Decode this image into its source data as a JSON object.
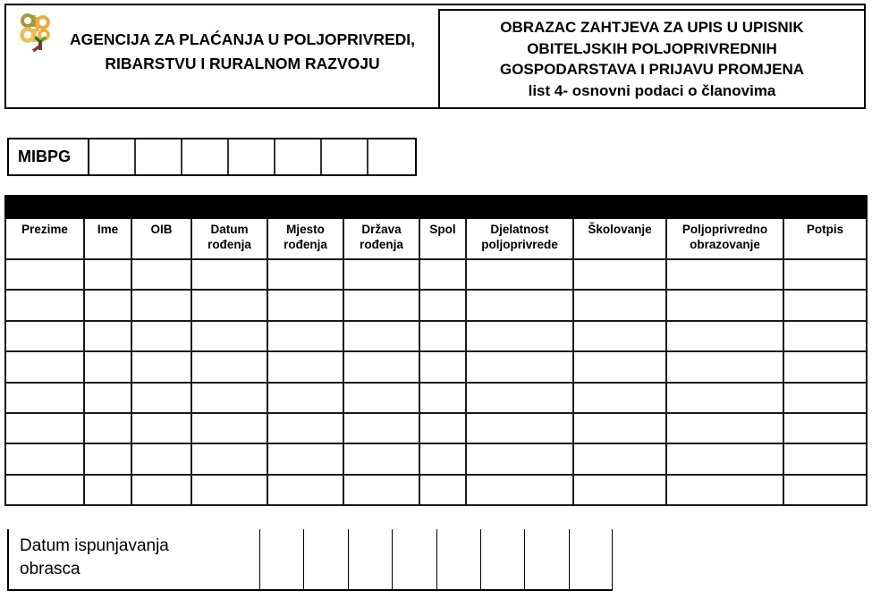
{
  "header": {
    "logo_icon": "apprrr-flower-logo",
    "logo_colors": {
      "olive": "#A09A3E",
      "gold": "#ECAE3B",
      "light_gold": "#F0BC55",
      "green": "#57A33B",
      "dark_green": "#2C6E2F",
      "brown": "#6F4323",
      "maroon": "#7A3B2E"
    },
    "agency_lines": [
      "AGENCIJA ZA PLAĆANJA U POLJOPRIVREDI,",
      "RIBARSTVU I RURALNOM RAZVOJU"
    ],
    "title_lines": [
      "OBRAZAC ZAHTJEVA ZA UPIS U UPISNIK",
      "OBITELJSKIH POLJOPRIVREDNIH",
      "GOSPODARSTAVA I PRIJAVU PROMJENA",
      "list 4- osnovni podaci o članovima"
    ]
  },
  "mibpg": {
    "label": "MIBPG",
    "cell_count": 7,
    "cell_values": [
      "",
      "",
      "",
      "",
      "",
      "",
      ""
    ]
  },
  "members_table": {
    "top_bar_color": "#000000",
    "columns": [
      "Prezime",
      "Ime",
      "OIB",
      "Datum rođenja",
      "Mjesto rođenja",
      "Država rođenja",
      "Spol",
      "Djelatnost poljoprivrede",
      "Školovanje",
      "Poljoprivredno obrazovanje",
      "Potpis"
    ],
    "empty_row_count": 8
  },
  "footer": {
    "label_lines": [
      "Datum ispunjavanja",
      "obrasca"
    ],
    "cell_count": 8,
    "cell_values": [
      "",
      "",
      "",
      "",
      "",
      "",
      "",
      ""
    ]
  }
}
